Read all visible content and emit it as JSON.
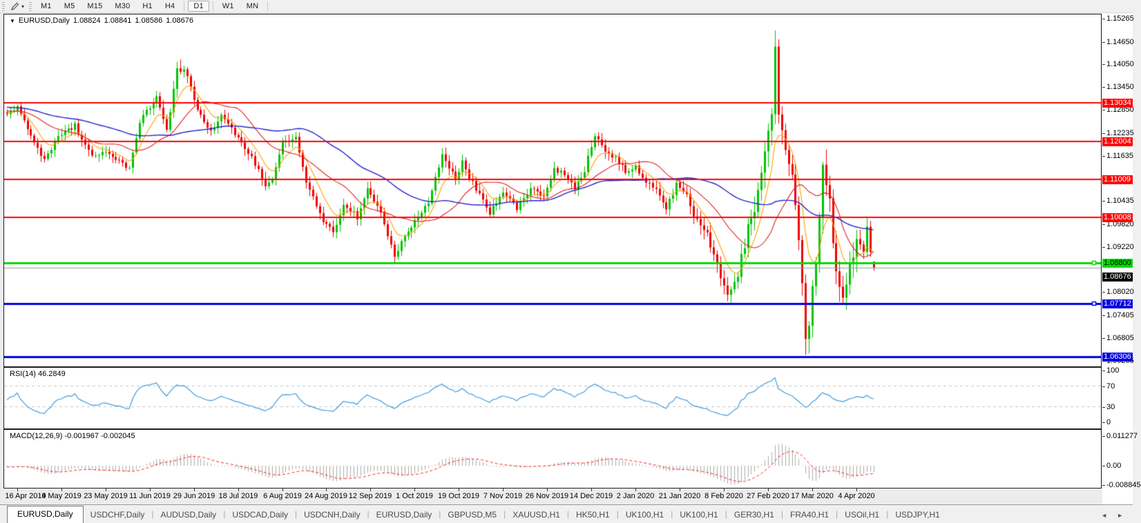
{
  "toolbar": {
    "timeframes": [
      "M1",
      "M5",
      "M15",
      "M30",
      "H1",
      "H4",
      "D1",
      "W1",
      "MN"
    ],
    "active_timeframe": "D1",
    "caret_glyph": "▾"
  },
  "chart": {
    "symbol": "EURUSD,Daily",
    "dropdown_glyph": "▼",
    "ohlc": {
      "open": "1.08824",
      "high": "1.08841",
      "low": "1.08586",
      "close": "1.08676"
    }
  },
  "chart_data": {
    "type": "candlestick",
    "title": "EURUSD,Daily",
    "up_color": "#00C400",
    "down_color": "#EE0000",
    "x_labels": [
      "16 Apr 2019",
      "4 May 2019",
      "23 May 2019",
      "11 Jun 2019",
      "29 Jun 2019",
      "18 Jul 2019",
      "6 Aug 2019",
      "24 Aug 2019",
      "12 Sep 2019",
      "1 Oct 2019",
      "19 Oct 2019",
      "7 Nov 2019",
      "26 Nov 2019",
      "14 Dec 2019",
      "2 Jan 2020",
      "21 Jan 2020",
      "8 Feb 2020",
      "27 Feb 2020",
      "17 Mar 2020",
      "4 Apr 2020"
    ],
    "y_axis_labels": [
      [
        "1.15265",
        1.15265
      ],
      [
        "1.14650",
        1.1465
      ],
      [
        "1.14050",
        1.1405
      ],
      [
        "1.13450",
        1.1345
      ],
      [
        "1.12850",
        1.1285
      ],
      [
        "1.12235",
        1.12235
      ],
      [
        "1.11635",
        1.11635
      ],
      [
        "1.10435",
        1.10435
      ],
      [
        "1.09820",
        1.0982
      ],
      [
        "1.09220",
        1.0922
      ],
      [
        "1.08020",
        1.0802
      ],
      [
        "1.07405",
        1.07405
      ],
      [
        "1.06805",
        1.06805
      ],
      [
        "1.06205",
        1.06205
      ]
    ],
    "y_range": {
      "top": 1.15374,
      "bottom": 1.06055
    },
    "price_lines": [
      {
        "price": 1.13034,
        "label": "1.13034",
        "color": "#FF0000",
        "width": 2,
        "text": "#fff",
        "handle": false
      },
      {
        "price": 1.12004,
        "label": "1.12004",
        "color": "#FF0000",
        "width": 2,
        "text": "#fff",
        "handle": false
      },
      {
        "price": 1.11009,
        "label": "1.11009",
        "color": "#FF0000",
        "width": 2,
        "text": "#fff",
        "handle": false
      },
      {
        "price": 1.10008,
        "label": "1.10008",
        "color": "#FF0000",
        "width": 2,
        "text": "#fff",
        "handle": false
      },
      {
        "price": 1.088,
        "label": "1.08800",
        "color": "#00D800",
        "width": 3,
        "text": "#000",
        "handle": true
      },
      {
        "price": 1.07712,
        "label": "1.07712",
        "color": "#0000E0",
        "width": 3,
        "text": "#fff",
        "handle": true
      },
      {
        "price": 1.06306,
        "label": "1.06306",
        "color": "#0000E0",
        "width": 3,
        "text": "#fff",
        "handle": false
      }
    ],
    "current_price": {
      "price": 1.08676,
      "label": "1.08676",
      "line_color": "#9C9C9C",
      "bg": "#000000",
      "text": "#fff"
    },
    "candles": {
      "count": 256,
      "anchors": [
        [
          0,
          1.1275
        ],
        [
          3,
          1.1292
        ],
        [
          6,
          1.1235
        ],
        [
          11,
          1.115
        ],
        [
          15,
          1.1218
        ],
        [
          20,
          1.1242
        ],
        [
          25,
          1.1162
        ],
        [
          30,
          1.1172
        ],
        [
          36,
          1.1128
        ],
        [
          39,
          1.1252
        ],
        [
          44,
          1.1322
        ],
        [
          47,
          1.1232
        ],
        [
          50,
          1.1392
        ],
        [
          53,
          1.1378
        ],
        [
          56,
          1.1282
        ],
        [
          60,
          1.1222
        ],
        [
          63,
          1.127
        ],
        [
          68,
          1.1212
        ],
        [
          73,
          1.1142
        ],
        [
          76,
          1.1082
        ],
        [
          78,
          1.1102
        ],
        [
          81,
          1.1198
        ],
        [
          85,
          1.1212
        ],
        [
          88,
          1.1092
        ],
        [
          93,
          1.0992
        ],
        [
          96,
          1.0962
        ],
        [
          99,
          1.1032
        ],
        [
          103,
          1.1002
        ],
        [
          106,
          1.1072
        ],
        [
          110,
          1.1012
        ],
        [
          114,
          1.0902
        ],
        [
          116,
          1.0932
        ],
        [
          120,
          1.0992
        ],
        [
          124,
          1.1042
        ],
        [
          128,
          1.1162
        ],
        [
          132,
          1.1102
        ],
        [
          134,
          1.1148
        ],
        [
          138,
          1.1072
        ],
        [
          142,
          1.1012
        ],
        [
          146,
          1.1068
        ],
        [
          150,
          1.1022
        ],
        [
          154,
          1.1078
        ],
        [
          158,
          1.1052
        ],
        [
          161,
          1.1128
        ],
        [
          164,
          1.1118
        ],
        [
          167,
          1.1082
        ],
        [
          170,
          1.1122
        ],
        [
          173,
          1.1222
        ],
        [
          176,
          1.1172
        ],
        [
          179,
          1.1158
        ],
        [
          182,
          1.1122
        ],
        [
          185,
          1.1132
        ],
        [
          188,
          1.1092
        ],
        [
          191,
          1.1078
        ],
        [
          194,
          1.1022
        ],
        [
          197,
          1.1088
        ],
        [
          200,
          1.1058
        ],
        [
          202,
          1.1002
        ],
        [
          206,
          1.0952
        ],
        [
          209,
          1.0872
        ],
        [
          212,
          1.0792
        ],
        [
          215,
          1.0852
        ],
        [
          218,
          1.0982
        ],
        [
          220,
          1.1032
        ],
        [
          222,
          1.1132
        ],
        [
          225,
          1.1282
        ],
        [
          226,
          1.1452
        ],
        [
          227,
          1.1282
        ],
        [
          229,
          1.1182
        ],
        [
          231,
          1.1112
        ],
        [
          233,
          1.0952
        ],
        [
          235,
          1.0692
        ],
        [
          236,
          1.0722
        ],
        [
          238,
          1.0882
        ],
        [
          240,
          1.1142
        ],
        [
          242,
          1.1032
        ],
        [
          244,
          1.0862
        ],
        [
          246,
          1.0792
        ],
        [
          248,
          1.0872
        ],
        [
          250,
          1.0932
        ],
        [
          252,
          1.0912
        ],
        [
          253,
          1.0978
        ],
        [
          254,
          1.0912
        ],
        [
          255,
          1.08676
        ]
      ],
      "extreme_highs": [
        [
          50,
          1.1412
        ],
        [
          226,
          1.1495
        ],
        [
          240,
          1.1147
        ]
      ],
      "extreme_lows": [
        [
          114,
          1.0879
        ],
        [
          212,
          1.0778
        ],
        [
          235,
          1.0636
        ],
        [
          246,
          1.0773
        ]
      ],
      "last": {
        "o": 1.08824,
        "h": 1.08841,
        "l": 1.08586,
        "c": 1.08676
      },
      "prehistory_start": 1.1315
    },
    "moving_averages": [
      {
        "name": "ma-fast",
        "kind": "ema",
        "period": 8,
        "color": "#FFA000"
      },
      {
        "name": "ma-medium",
        "kind": "sma",
        "period": 20,
        "color": "#E02020"
      },
      {
        "name": "ma-slow",
        "kind": "sma",
        "period": 50,
        "color": "#2424CC"
      }
    ],
    "rsi": {
      "label": "RSI(14) 46.2849",
      "period": 14,
      "value": "46.2849",
      "levels": [
        70,
        30
      ],
      "axis_labels": [
        [
          "100",
          100
        ],
        [
          "70",
          70
        ],
        [
          "30",
          30
        ],
        [
          "0",
          0
        ]
      ],
      "color": "#3E9BDE",
      "level_color": "#C6C6C6"
    },
    "macd": {
      "label": "MACD(12,26,9) -0.001967 -0.002045",
      "fast": 12,
      "slow": 26,
      "signal_period": 9,
      "main_value": "-0.001967",
      "signal_value": "-0.002045",
      "axis_labels": [
        [
          "0.011277",
          0.011277
        ],
        [
          "0.00",
          0
        ],
        [
          "-0.008845",
          -0.008845
        ]
      ],
      "histogram_color": "#ABABAB",
      "signal_color": "#FF2020"
    }
  },
  "tabs": {
    "items": [
      {
        "label": "EURUSD,Daily",
        "active": true
      },
      {
        "label": "USDCHF,Daily",
        "active": false
      },
      {
        "label": "AUDUSD,Daily",
        "active": false
      },
      {
        "label": "USDCAD,Daily",
        "active": false
      },
      {
        "label": "USDCNH,Daily",
        "active": false
      },
      {
        "label": "EURUSD,Daily",
        "active": false
      },
      {
        "label": "GBPUSD,M5",
        "active": false
      },
      {
        "label": "XAUUSD,H1",
        "active": false
      },
      {
        "label": "HK50,H1",
        "active": false
      },
      {
        "label": "UK100,H1",
        "active": false
      },
      {
        "label": "UK100,H1",
        "active": false
      },
      {
        "label": "GER30,H1",
        "active": false
      },
      {
        "label": "FRA40,H1",
        "active": false
      },
      {
        "label": "USOil,H1",
        "active": false
      },
      {
        "label": "USDJPY,H1",
        "active": false
      }
    ],
    "nav_left": "◄",
    "nav_right": "►"
  }
}
